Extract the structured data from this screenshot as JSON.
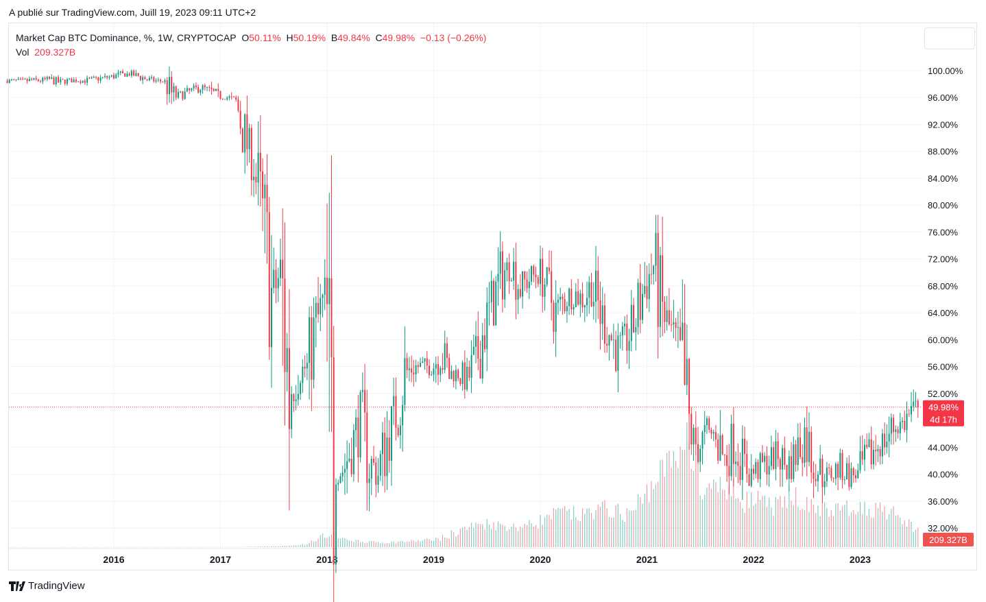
{
  "published": "A publié sur TradingView.com, Juill 19, 2023 09:11 UTC+2",
  "legend": {
    "symbol": "Market Cap BTC Dominance, %, 1W, CRYPTOCAP",
    "o_label": "O",
    "o": "50.11%",
    "h_label": "H",
    "h": "50.19%",
    "b_label": "B",
    "b": "49.84%",
    "c_label": "C",
    "c": "49.98%",
    "change": "−0.13 (−0.26%)",
    "vol_label": "Vol",
    "vol": "209.327B"
  },
  "price_badge": {
    "value": "49.98%",
    "countdown": "4d 17h"
  },
  "volume_badge": "209.327B",
  "logo_text": "TradingView",
  "colors": {
    "up": "#089981",
    "down": "#f23645",
    "grid": "#f0f3fa",
    "badge": "#f23645"
  },
  "chart_data": {
    "type": "candlestick",
    "interval": "1W",
    "y_unit": "%",
    "ylim": [
      30,
      101
    ],
    "y_ticks": [
      "100.00%",
      "96.00%",
      "92.00%",
      "88.00%",
      "84.00%",
      "80.00%",
      "76.00%",
      "72.00%",
      "68.00%",
      "64.00%",
      "60.00%",
      "56.00%",
      "52.00%",
      "44.00%",
      "40.00%",
      "36.00%",
      "32.00%"
    ],
    "x_ticks": [
      "2016",
      "2017",
      "2018",
      "2019",
      "2020",
      "2021",
      "2022",
      "2023"
    ],
    "grid": true,
    "last_close": 49.98,
    "start_month": "2015-01",
    "monthly_close": [
      98.5,
      98.4,
      98.6,
      98.5,
      98.7,
      98.3,
      98.5,
      98.6,
      98.5,
      98.7,
      98.9,
      99.1,
      99.4,
      99.5,
      99.2,
      98.7,
      98.5,
      98.4,
      96,
      96.5,
      97,
      97.5,
      97,
      96,
      96,
      95.5,
      90,
      86,
      78,
      66,
      70,
      52,
      55,
      56,
      62,
      66,
      40,
      40.5,
      44,
      48,
      42,
      40,
      45,
      49,
      55,
      56,
      56,
      56,
      58,
      55,
      55,
      54,
      57,
      62,
      66,
      70,
      71,
      68,
      69,
      70,
      68,
      64,
      66,
      67,
      66,
      68,
      64,
      61,
      58,
      60,
      63,
      68,
      71,
      64,
      61,
      58,
      46,
      44,
      46,
      46,
      42,
      45,
      42,
      40,
      41,
      42,
      43,
      41,
      43,
      46,
      42,
      40,
      40,
      41,
      40,
      40,
      42,
      44,
      45,
      47,
      47.5,
      49,
      49.98
    ],
    "volume_unit": "B",
    "monthly_volume": [
      1,
      1,
      1,
      1,
      1,
      1,
      1,
      1,
      1,
      1,
      1,
      1,
      2,
      2,
      2,
      2,
      2,
      2,
      2,
      2,
      2,
      3,
      3,
      3,
      3,
      3,
      4,
      5,
      6,
      8,
      10,
      15,
      20,
      30,
      60,
      120,
      130,
      100,
      80,
      70,
      60,
      55,
      50,
      55,
      60,
      65,
      70,
      80,
      90,
      110,
      150,
      200,
      230,
      250,
      260,
      240,
      230,
      220,
      240,
      260,
      300,
      350,
      380,
      360,
      340,
      380,
      400,
      420,
      380,
      360,
      400,
      500,
      650,
      800,
      900,
      1000,
      1300,
      850,
      550,
      600,
      650,
      600,
      560,
      500,
      500,
      460,
      450,
      450,
      600,
      500,
      450,
      420,
      400,
      400,
      450,
      350,
      400,
      420,
      460,
      360,
      300,
      260,
      209.327
    ]
  }
}
